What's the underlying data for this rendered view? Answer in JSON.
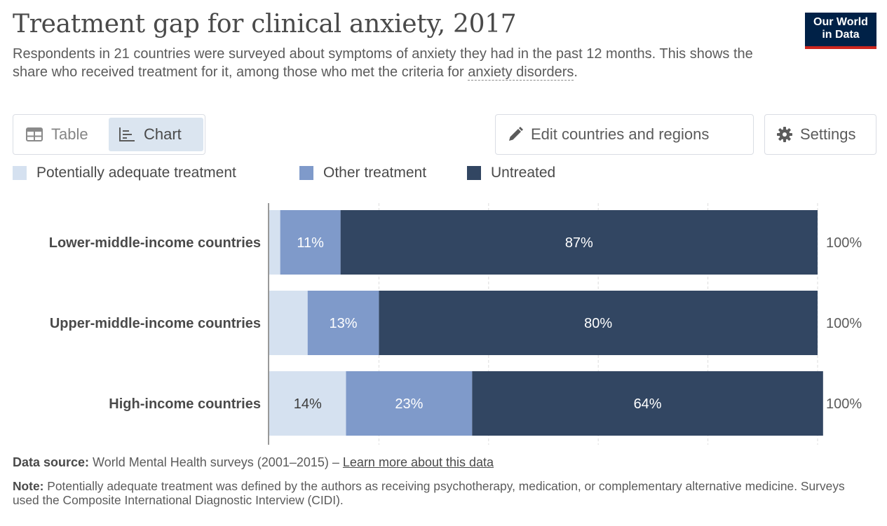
{
  "header": {
    "title": "Treatment gap for clinical anxiety, 2017",
    "subtitle_text": "Respondents in 21 countries were surveyed about symptoms of anxiety they had in the past 12 months. This shows the share who received treatment for it, among those who met the criteria for ",
    "subtitle_link": "anxiety disorders",
    "subtitle_end": ".",
    "logo_line1": "Our World",
    "logo_line2": "in Data"
  },
  "tabs": {
    "table_label": "Table",
    "chart_label": "Chart"
  },
  "toolbar": {
    "edit_label": "Edit countries and regions",
    "settings_label": "Settings"
  },
  "colors": {
    "adequate": "#d5e1f0",
    "other": "#7f9aca",
    "untreated": "#324662",
    "grid": "#dddddd",
    "axis": "#999999"
  },
  "footer": {
    "source_label": "Data source:",
    "source_text": " World Mental Health surveys (2001–2015) – ",
    "source_link": "Learn more about this data",
    "note_label": "Note:",
    "note_text": " Potentially adequate treatment was defined by the authors as receiving psychotherapy, medication, or complementary alternative medicine. Surveys used the Composite International Diagnostic Interview (CIDI)."
  },
  "chart_data": {
    "type": "bar",
    "orientation": "horizontal",
    "stacked": true,
    "categories": [
      "Lower-middle-income countries",
      "Upper-middle-income countries",
      "High-income countries"
    ],
    "series": [
      {
        "name": "Potentially adequate treatment",
        "values": [
          2,
          7,
          14
        ]
      },
      {
        "name": "Other treatment",
        "values": [
          11,
          13,
          23
        ]
      },
      {
        "name": "Untreated",
        "values": [
          87,
          80,
          64
        ]
      }
    ],
    "data_labels": [
      [
        "",
        "11%",
        "87%"
      ],
      [
        "",
        "13%",
        "80%"
      ],
      [
        "14%",
        "23%",
        "64%"
      ]
    ],
    "totals": [
      "100%",
      "100%",
      "100%"
    ],
    "xlim": [
      0,
      100
    ],
    "grid": true,
    "legend_position": "top"
  }
}
